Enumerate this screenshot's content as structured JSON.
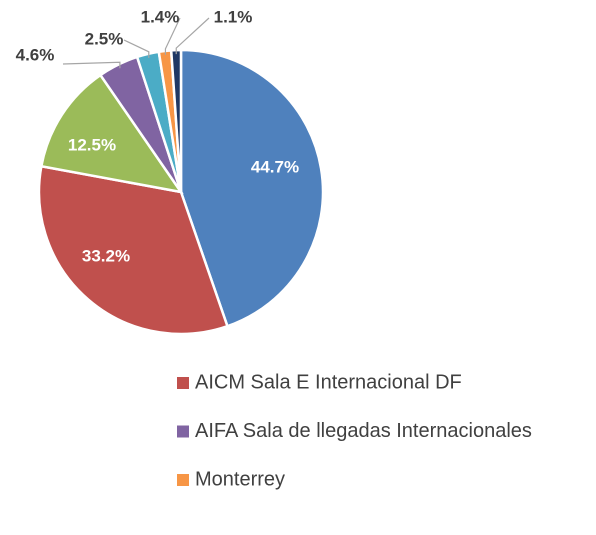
{
  "chart_data": {
    "type": "pie",
    "categories": [
      null,
      "AICM  Sala E Internacional DF",
      null,
      "AIFA Sala de llegadas Internacionales",
      null,
      "Monterrey",
      null
    ],
    "values": [
      44.7,
      33.2,
      12.5,
      4.6,
      2.5,
      1.4,
      1.1
    ],
    "value_labels": [
      "44.7%",
      "33.2%",
      "12.5%",
      "4.6%",
      "2.5%",
      "1.4%",
      "1.1%"
    ],
    "colors": [
      "#4f81bd",
      "#c0504d",
      "#9bbb59",
      "#8064a2",
      "#4bacc6",
      "#f79646",
      "#1f3864"
    ]
  }
}
